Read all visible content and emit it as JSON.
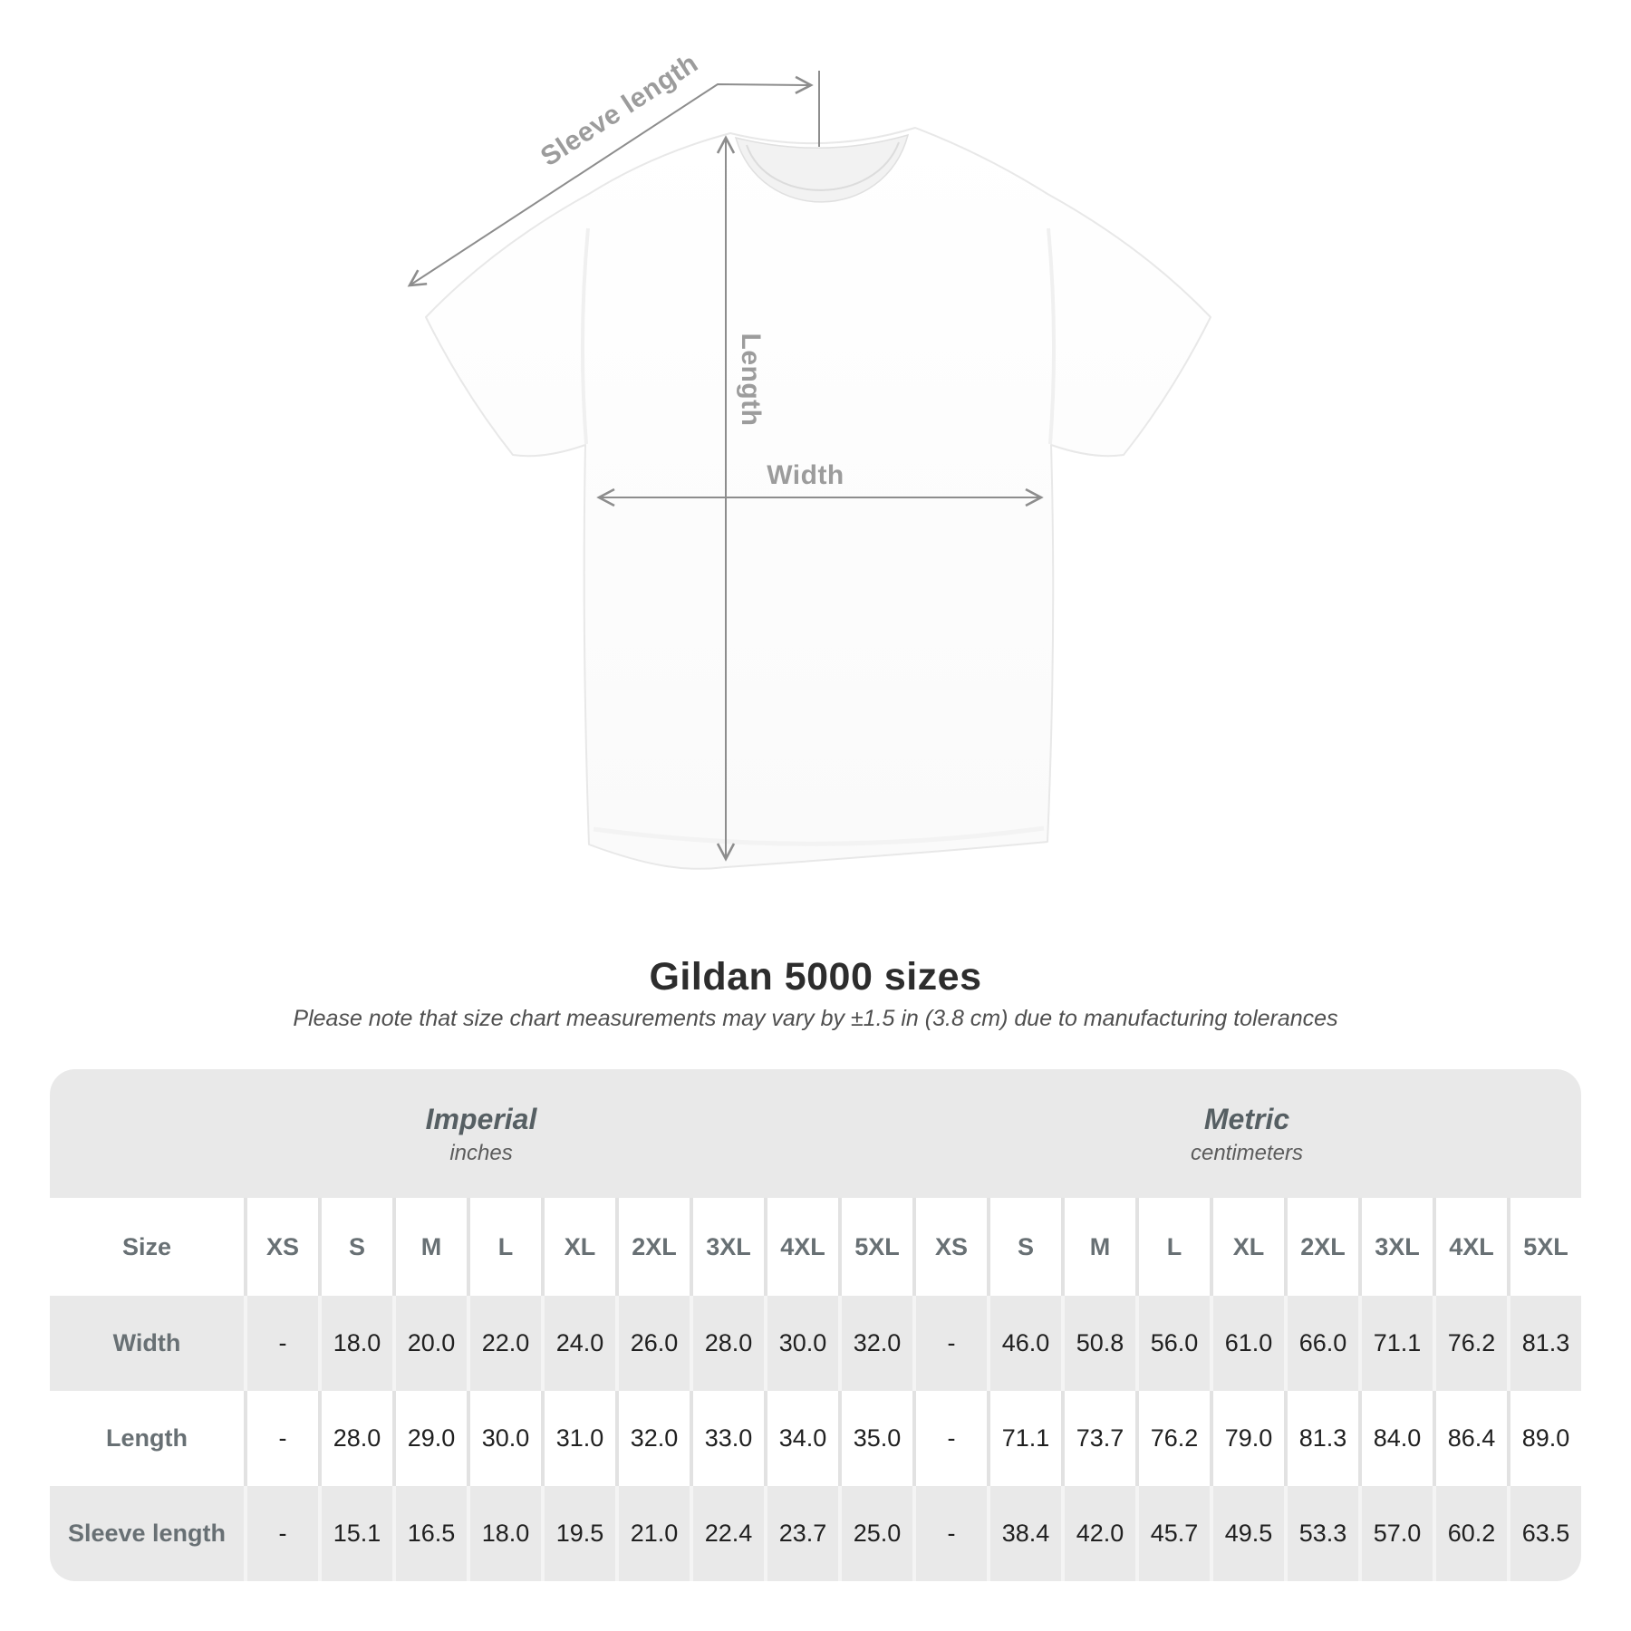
{
  "figure": {
    "sleeve_length_label": "Sleeve length",
    "length_label": "Length",
    "width_label": "Width"
  },
  "chart_data": {
    "type": "table",
    "title": "Gildan 5000 sizes",
    "subtitle": "Please note that size chart measurements may vary by ±1.5 in (3.8 cm) due to manufacturing tolerances",
    "groups": [
      {
        "label": "Imperial",
        "unit": "inches"
      },
      {
        "label": "Metric",
        "unit": "centimeters"
      }
    ],
    "size_header": "Size",
    "sizes": [
      "XS",
      "S",
      "M",
      "L",
      "XL",
      "2XL",
      "3XL",
      "4XL",
      "5XL"
    ],
    "rows": [
      {
        "label": "Width",
        "imperial": [
          "-",
          "18.0",
          "20.0",
          "22.0",
          "24.0",
          "26.0",
          "28.0",
          "30.0",
          "32.0"
        ],
        "metric": [
          "-",
          "46.0",
          "50.8",
          "56.0",
          "61.0",
          "66.0",
          "71.1",
          "76.2",
          "81.3"
        ]
      },
      {
        "label": "Length",
        "imperial": [
          "-",
          "28.0",
          "29.0",
          "30.0",
          "31.0",
          "32.0",
          "33.0",
          "34.0",
          "35.0"
        ],
        "metric": [
          "-",
          "71.1",
          "73.7",
          "76.2",
          "79.0",
          "81.3",
          "84.0",
          "86.4",
          "89.0"
        ]
      },
      {
        "label": "Sleeve length",
        "imperial": [
          "-",
          "15.1",
          "16.5",
          "18.0",
          "19.5",
          "21.0",
          "22.4",
          "23.7",
          "25.0"
        ],
        "metric": [
          "-",
          "38.4",
          "42.0",
          "45.7",
          "49.5",
          "53.3",
          "57.0",
          "60.2",
          "63.5"
        ]
      }
    ]
  },
  "colors": {
    "table_gray": "#e9e9e9",
    "dimension_line": "#8d8d8d",
    "dimension_label": "#9c9c9c",
    "header_text": "#687074",
    "value_text": "#202020",
    "title_text": "#2d2d2d"
  }
}
